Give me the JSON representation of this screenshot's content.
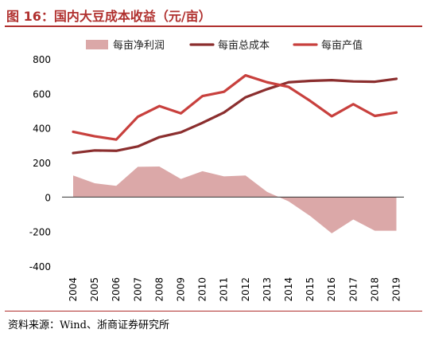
{
  "header": {
    "title": "图 16：国内大豆成本收益（元/亩）"
  },
  "footer": {
    "source": "资料来源：Wind、浙商证券研究所"
  },
  "colors": {
    "accent": "#b0302e",
    "net_profit": "#dba8a8",
    "total_cost": "#8b2e2e",
    "output_value": "#c8403d"
  },
  "chart_data": {
    "type": "line",
    "x": [
      "2004",
      "2005",
      "2006",
      "2007",
      "2008",
      "2009",
      "2010",
      "2011",
      "2012",
      "2013",
      "2014",
      "2015",
      "2016",
      "2017",
      "2018",
      "2019"
    ],
    "ylim": [
      -400,
      800
    ],
    "yticks": [
      -400,
      -200,
      0,
      200,
      400,
      600,
      800
    ],
    "ytick_labels": [
      "-400",
      "-200",
      "0",
      "200",
      "400",
      "600",
      "800"
    ],
    "grid": false,
    "legend_position": "top",
    "series": [
      {
        "name": "每亩净利润",
        "type": "area",
        "color": "#dba8a8",
        "values": [
          125,
          80,
          65,
          175,
          177,
          105,
          150,
          120,
          125,
          30,
          -25,
          -110,
          -210,
          -130,
          -195,
          -195
        ]
      },
      {
        "name": "每亩总成本",
        "type": "line",
        "color": "#8b2e2e",
        "values": [
          255,
          270,
          268,
          293,
          347,
          375,
          430,
          490,
          578,
          625,
          665,
          673,
          677,
          670,
          668,
          685
        ]
      },
      {
        "name": "每亩产值",
        "type": "line",
        "color": "#c8403d",
        "values": [
          378,
          352,
          333,
          465,
          527,
          485,
          585,
          610,
          705,
          665,
          638,
          557,
          468,
          538,
          470,
          490
        ]
      }
    ]
  }
}
